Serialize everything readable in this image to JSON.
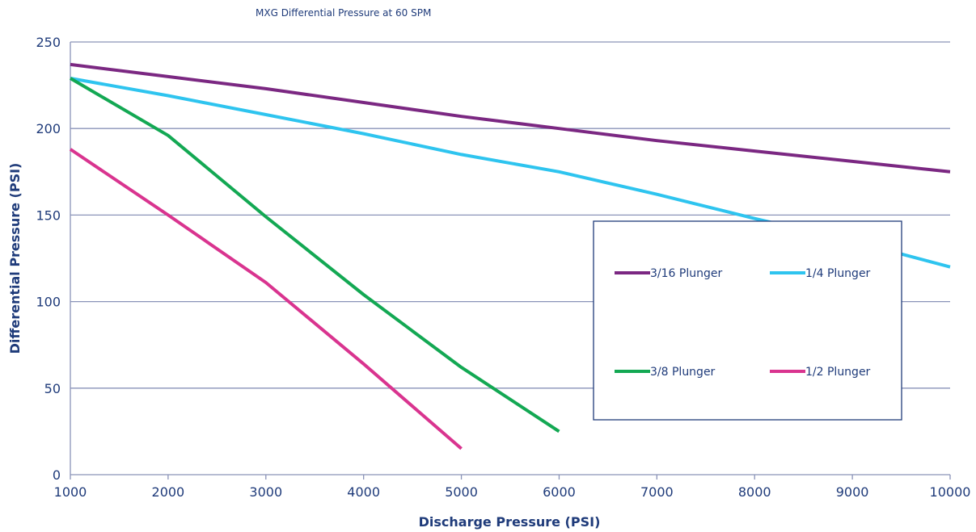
{
  "chart_data": {
    "type": "line",
    "title": "MXG Differential Pressure at 60 SPM",
    "xlabel": "Discharge Pressure (PSI)",
    "ylabel": "Differential Pressure (PSI)",
    "xlim": [
      1000,
      10000
    ],
    "ylim": [
      0,
      250
    ],
    "xticks": [
      "1000",
      "2000",
      "3000",
      "4000",
      "5000",
      "6000",
      "7000",
      "8000",
      "9000",
      "10000"
    ],
    "yticks": [
      "0",
      "50",
      "100",
      "150",
      "200",
      "250"
    ],
    "grid": "horizontal",
    "legend_placement": "bottom-right",
    "series": [
      {
        "name": "3/16 Plunger",
        "color": "#7b2882",
        "x": [
          1000,
          2000,
          3000,
          4000,
          5000,
          6000,
          7000,
          8000,
          9000,
          10000
        ],
        "y": [
          237,
          230,
          223,
          215,
          207,
          200,
          193,
          187,
          181,
          175
        ]
      },
      {
        "name": "1/4 Plunger",
        "color": "#2ec4ef",
        "x": [
          1000,
          2000,
          3000,
          4000,
          5000,
          6000,
          7000,
          8000,
          9000,
          10000
        ],
        "y": [
          229,
          219,
          208,
          197,
          185,
          175,
          162,
          148,
          135,
          120
        ]
      },
      {
        "name": "3/8 Plunger",
        "color": "#13a853",
        "x": [
          1000,
          2000,
          3000,
          4000,
          5000,
          6000
        ],
        "y": [
          229,
          196,
          149,
          104,
          62,
          25
        ]
      },
      {
        "name": "1/2 Plunger",
        "color": "#d9348f",
        "x": [
          1000,
          2000,
          3000,
          4000,
          5000
        ],
        "y": [
          188,
          150,
          111,
          64,
          15
        ]
      }
    ]
  }
}
